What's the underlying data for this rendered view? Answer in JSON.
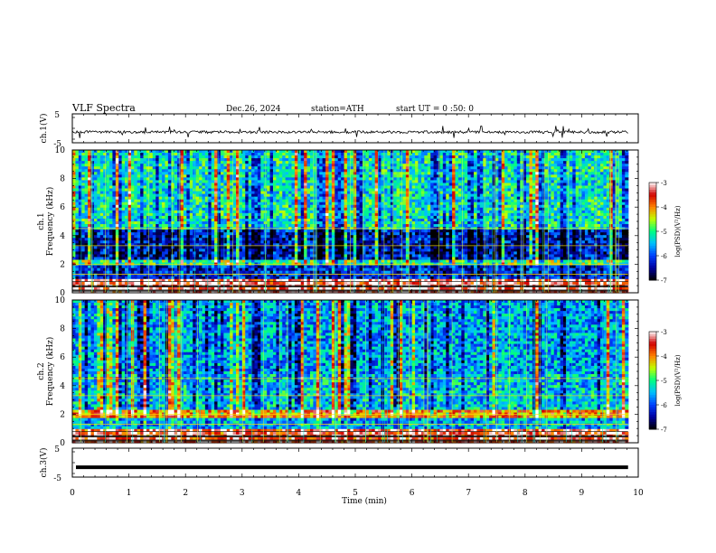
{
  "header": {
    "title": "VLF  Spectra",
    "date": "Dec.26, 2024",
    "station": "station=ATH",
    "start": "start  UT  =    0  :50: 0"
  },
  "chart_data": [
    {
      "type": "line",
      "name": "ch1-waveform",
      "ylabel": "ch.1(V)",
      "ylim": [
        -5,
        5
      ],
      "xlim": [
        0,
        10
      ],
      "yticks": [
        "5",
        "-5"
      ],
      "baseline_v": -1.3,
      "x_end_min": 9.82
    },
    {
      "type": "heatmap",
      "name": "ch1-spectrogram",
      "ylabel": "Frequency (kHz)",
      "ylabel2": "ch.1",
      "ylim": [
        0,
        10
      ],
      "xlim": [
        0,
        10
      ],
      "yticks": [
        "0",
        "2",
        "4",
        "6",
        "8",
        "10"
      ],
      "bands_khz": [
        {
          "f0": 0.0,
          "f1": 0.9,
          "level": -3.2
        },
        {
          "f0": 0.9,
          "f1": 1.9,
          "level": -6.2
        },
        {
          "f0": 1.9,
          "f1": 2.4,
          "level": -4.8
        },
        {
          "f0": 2.4,
          "f1": 4.5,
          "level": -6.3
        },
        {
          "f0": 4.5,
          "f1": 10.0,
          "level": -5.2
        }
      ]
    },
    {
      "type": "heatmap",
      "name": "ch2-spectrogram",
      "ylabel": "Frequency (kHz)",
      "ylabel2": "ch.2",
      "ylim": [
        0,
        10
      ],
      "xlim": [
        0,
        10
      ],
      "yticks": [
        "0",
        "2",
        "4",
        "6",
        "8",
        "10"
      ],
      "bands_khz": [
        {
          "f0": 0.0,
          "f1": 0.9,
          "level": -3.4
        },
        {
          "f0": 0.9,
          "f1": 1.7,
          "level": -5.6
        },
        {
          "f0": 1.7,
          "f1": 2.3,
          "level": -3.9
        },
        {
          "f0": 2.3,
          "f1": 4.8,
          "level": -5.4
        },
        {
          "f0": 4.8,
          "f1": 10.0,
          "level": -5.6
        }
      ]
    },
    {
      "type": "line",
      "name": "ch3-waveform",
      "ylabel": "ch.3(V)",
      "ylim": [
        -5,
        5
      ],
      "xlim": [
        0,
        10
      ],
      "yticks": [
        "5",
        "-5"
      ],
      "baseline_v": -1.6,
      "x_end_min": 9.82,
      "xlabel": "Time  (min)",
      "xticks": [
        "0",
        "1",
        "2",
        "3",
        "4",
        "5",
        "6",
        "7",
        "8",
        "9",
        "10"
      ]
    }
  ],
  "colorbar": {
    "label": "log(PSD)(V²/Hz)",
    "ticks": [
      "-3",
      "-4",
      "-5",
      "-6",
      "-7"
    ],
    "range": [
      -7,
      -3
    ],
    "colors": [
      "#000000",
      "#0000a0",
      "#0040ff",
      "#00c0ff",
      "#00ff80",
      "#c0ff00",
      "#ff8000",
      "#d00000",
      "#ffffff"
    ]
  }
}
